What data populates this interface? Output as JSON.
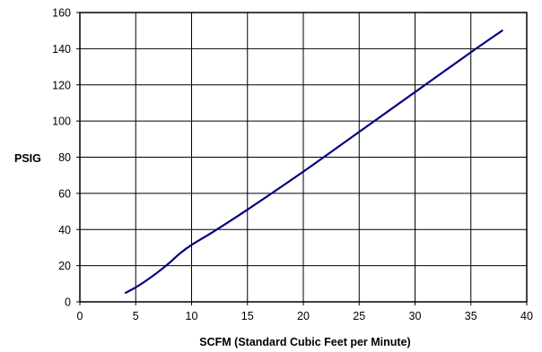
{
  "chart_data": {
    "type": "line",
    "title": "",
    "xlabel": "SCFM (Standard Cubic Feet per Minute)",
    "ylabel": "PSIG",
    "xlim": [
      0,
      40
    ],
    "ylim": [
      0,
      160
    ],
    "x_ticks": [
      0,
      5,
      10,
      15,
      20,
      25,
      30,
      35,
      40
    ],
    "y_ticks": [
      0,
      20,
      40,
      60,
      80,
      100,
      120,
      140,
      160
    ],
    "x_tick_labels": [
      "0",
      "5",
      "10",
      "15",
      "20",
      "25",
      "30",
      "35",
      "40"
    ],
    "y_tick_labels": [
      "0",
      "20",
      "40",
      "60",
      "80",
      "100",
      "120",
      "140",
      "160"
    ],
    "grid": true,
    "legend": "none",
    "series": [
      {
        "color": "#000080",
        "x": [
          4.1,
          5,
          6,
          7,
          8,
          9,
          10,
          12,
          15,
          20,
          25,
          30,
          35,
          37.8
        ],
        "y": [
          5,
          8,
          12,
          16.5,
          21.5,
          27,
          31.5,
          39,
          51,
          72,
          94,
          116,
          138,
          150
        ]
      }
    ]
  }
}
